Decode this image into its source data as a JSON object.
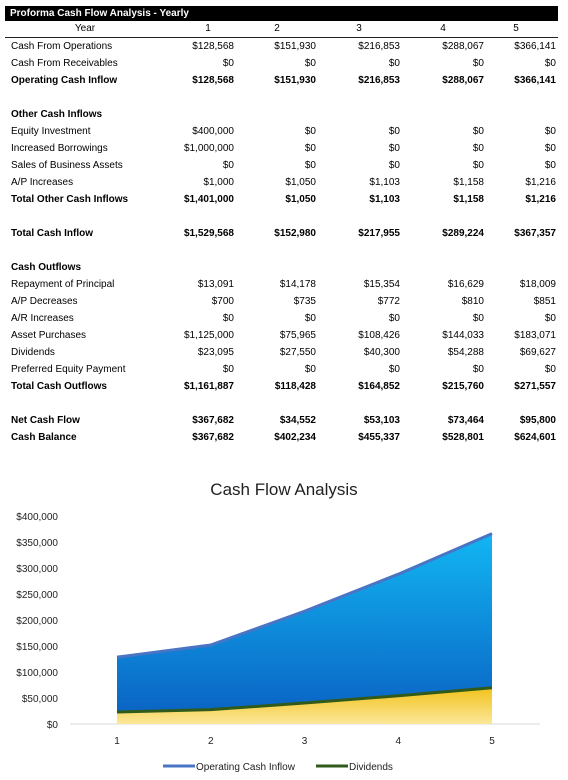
{
  "sheet": {
    "title": "Proforma Cash Flow Analysis - Yearly",
    "year_label": "Year",
    "years": [
      "1",
      "2",
      "3",
      "4",
      "5"
    ],
    "rows": [
      {
        "label": "Cash From Operations",
        "values": [
          "$128,568",
          "$151,930",
          "$216,853",
          "$288,067",
          "$366,141"
        ],
        "style": "normal"
      },
      {
        "label": "Cash From Receivables",
        "values": [
          "$0",
          "$0",
          "$0",
          "$0",
          "$0"
        ],
        "style": "normal"
      },
      {
        "label": "Operating Cash Inflow",
        "values": [
          "$128,568",
          "$151,930",
          "$216,853",
          "$288,067",
          "$366,141"
        ],
        "style": "bold"
      },
      {
        "label": "",
        "values": [
          "",
          "",
          "",
          "",
          ""
        ],
        "style": "gap"
      },
      {
        "label": "Other Cash Inflows",
        "values": [
          "",
          "",
          "",
          "",
          ""
        ],
        "style": "section"
      },
      {
        "label": "Equity Investment",
        "values": [
          "$400,000",
          "$0",
          "$0",
          "$0",
          "$0"
        ],
        "style": "normal"
      },
      {
        "label": "Increased Borrowings",
        "values": [
          "$1,000,000",
          "$0",
          "$0",
          "$0",
          "$0"
        ],
        "style": "normal"
      },
      {
        "label": "Sales of Business Assets",
        "values": [
          "$0",
          "$0",
          "$0",
          "$0",
          "$0"
        ],
        "style": "normal"
      },
      {
        "label": "A/P Increases",
        "values": [
          "$1,000",
          "$1,050",
          "$1,103",
          "$1,158",
          "$1,216"
        ],
        "style": "normal"
      },
      {
        "label": "Total Other Cash Inflows",
        "values": [
          "$1,401,000",
          "$1,050",
          "$1,103",
          "$1,158",
          "$1,216"
        ],
        "style": "bold"
      },
      {
        "label": "",
        "values": [
          "",
          "",
          "",
          "",
          ""
        ],
        "style": "gap"
      },
      {
        "label": "Total Cash Inflow",
        "values": [
          "$1,529,568",
          "$152,980",
          "$217,955",
          "$289,224",
          "$367,357"
        ],
        "style": "bold"
      },
      {
        "label": "",
        "values": [
          "",
          "",
          "",
          "",
          ""
        ],
        "style": "gap"
      },
      {
        "label": "Cash Outflows",
        "values": [
          "",
          "",
          "",
          "",
          ""
        ],
        "style": "section"
      },
      {
        "label": "Repayment of Principal",
        "values": [
          "$13,091",
          "$14,178",
          "$15,354",
          "$16,629",
          "$18,009"
        ],
        "style": "normal"
      },
      {
        "label": "A/P Decreases",
        "values": [
          "$700",
          "$735",
          "$772",
          "$810",
          "$851"
        ],
        "style": "normal"
      },
      {
        "label": "A/R Increases",
        "values": [
          "$0",
          "$0",
          "$0",
          "$0",
          "$0"
        ],
        "style": "normal"
      },
      {
        "label": "Asset Purchases",
        "values": [
          "$1,125,000",
          "$75,965",
          "$108,426",
          "$144,033",
          "$183,071"
        ],
        "style": "normal"
      },
      {
        "label": "Dividends",
        "values": [
          "$23,095",
          "$27,550",
          "$40,300",
          "$54,288",
          "$69,627"
        ],
        "style": "normal"
      },
      {
        "label": "Preferred Equity Payment",
        "values": [
          "$0",
          "$0",
          "$0",
          "$0",
          "$0"
        ],
        "style": "normal"
      },
      {
        "label": "Total Cash Outflows",
        "values": [
          "$1,161,887",
          "$118,428",
          "$164,852",
          "$215,760",
          "$271,557"
        ],
        "style": "bold"
      },
      {
        "label": "",
        "values": [
          "",
          "",
          "",
          "",
          ""
        ],
        "style": "gap"
      },
      {
        "label": "Net Cash Flow",
        "values": [
          "$367,682",
          "$34,552",
          "$53,103",
          "$73,464",
          "$95,800"
        ],
        "style": "bold"
      },
      {
        "label": "Cash Balance",
        "values": [
          "$367,682",
          "$402,234",
          "$455,337",
          "$528,801",
          "$624,601"
        ],
        "style": "bold"
      }
    ]
  },
  "chart_data": {
    "type": "area",
    "title": "Cash Flow Analysis",
    "x": [
      "1",
      "2",
      "3",
      "4",
      "5"
    ],
    "series": [
      {
        "name": "Operating Cash Inflow",
        "values": [
          128568,
          151930,
          216853,
          288067,
          366141
        ],
        "fill": "#0a8fd8",
        "line": "#4a74c4"
      },
      {
        "name": "Dividends",
        "values": [
          23095,
          27550,
          40300,
          54288,
          69627
        ],
        "fill": "#f2c21b",
        "line": "#2f5a1a"
      }
    ],
    "ylim": [
      0,
      400000
    ],
    "yticks": [
      "$0",
      "$50,000",
      "$100,000",
      "$150,000",
      "$200,000",
      "$250,000",
      "$300,000",
      "$350,000",
      "$400,000"
    ],
    "legend": "bottom",
    "grid": false
  }
}
